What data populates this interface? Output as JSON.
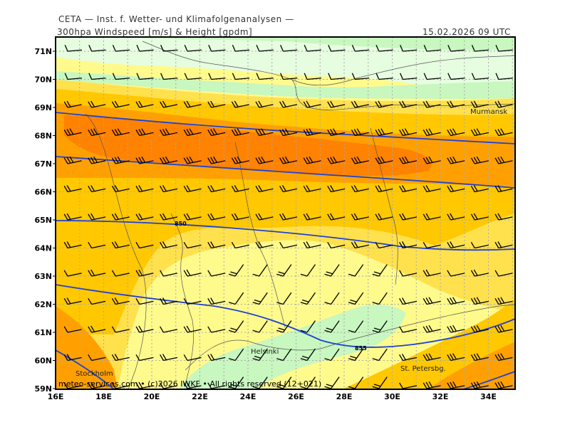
{
  "header": {
    "title": "CETA — Inst. f. Wetter- und Klimafolgenanalysen —",
    "product": "300hpa Windspeed [m/s] & Height [gpdm]",
    "valid": "15.02.2026 09 UTC"
  },
  "axes": {
    "lat_labels": [
      "71N",
      "70N",
      "69N",
      "68N",
      "67N",
      "66N",
      "65N",
      "64N",
      "63N",
      "62N",
      "61N",
      "60N",
      "59N"
    ],
    "lon_labels": [
      "16E",
      "18E",
      "20E",
      "22E",
      "24E",
      "26E",
      "28E",
      "30E",
      "32E",
      "34E"
    ]
  },
  "places": {
    "murmansk": "Murmansk",
    "helsinki": "Helsinki",
    "stockholm": "Stockholm",
    "st_petersburg": "St. Petersbg."
  },
  "contour_labels": {
    "c850": "850",
    "c855": "855"
  },
  "footer": {
    "credit": "meteo-services.com • (c)2026 IWKF • All rights reserved (12+021)"
  },
  "colors": {
    "wind_pale_green": "#e6fde0",
    "wind_green": "#c8f7c0",
    "wind_pale_yellow": "#fffa8c",
    "wind_yellow": "#ffe14d",
    "wind_gold": "#ffc800",
    "wind_orange": "#ffa000",
    "wind_dark_orange": "#ff8200",
    "height_contour": "#2040d0",
    "grid": "#aaaaaa",
    "coast": "#555555"
  }
}
